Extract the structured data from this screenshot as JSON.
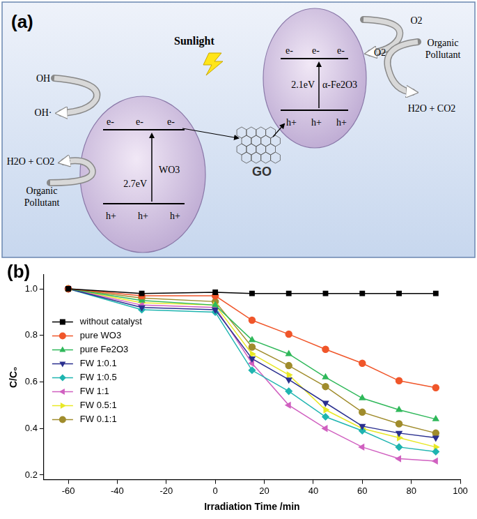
{
  "panel_labels": {
    "a": "(a)",
    "b": "(b)"
  },
  "diagram": {
    "light": "Sunlight",
    "wo3": {
      "name": "WO3",
      "band_gap": "2.7eV",
      "electrons": [
        "e-",
        "e-",
        "e-"
      ],
      "holes": [
        "h+",
        "h+",
        "h+"
      ]
    },
    "fe2o3": {
      "name": "α-Fe2O3",
      "band_gap": "2.1eV",
      "electrons": [
        "e-",
        "e-",
        "e-"
      ],
      "holes": [
        "h+",
        "h+",
        "h+"
      ]
    },
    "bridge": "GO",
    "left_reactions": [
      {
        "from": "OH",
        "to": "OH·"
      },
      {
        "from": "Organic Pollutant",
        "to": "H2O + CO2"
      }
    ],
    "right_reactions": [
      {
        "from": "O2",
        "to": "O2·"
      },
      {
        "from": "Organic Pollutant",
        "to": "H2O + CO2"
      }
    ]
  },
  "chart_data": {
    "type": "line",
    "x_label": "Irradiation Time /min",
    "y_label": "C/C₀",
    "x": [
      -60,
      -30,
      0,
      15,
      30,
      45,
      60,
      75,
      90
    ],
    "series": [
      {
        "name": "without catalyst",
        "color": "#000000",
        "marker": "square",
        "values": [
          1.0,
          0.98,
          0.985,
          0.98,
          0.98,
          0.98,
          0.98,
          0.98,
          0.98
        ]
      },
      {
        "name": "pure WO3",
        "color": "#f0562a",
        "marker": "circle",
        "values": [
          1.0,
          0.97,
          0.97,
          0.865,
          0.805,
          0.74,
          0.68,
          0.605,
          0.575
        ]
      },
      {
        "name": "pure Fe2O3",
        "color": "#2fb85a",
        "marker": "triangle-up",
        "values": [
          1.0,
          0.95,
          0.93,
          0.78,
          0.72,
          0.62,
          0.53,
          0.48,
          0.44
        ]
      },
      {
        "name": "FW 1:0.1",
        "color": "#2a2f8f",
        "marker": "triangle-down",
        "values": [
          1.0,
          0.92,
          0.91,
          0.7,
          0.61,
          0.51,
          0.41,
          0.38,
          0.36
        ]
      },
      {
        "name": "FW 1:0.5",
        "color": "#1fb5b0",
        "marker": "diamond",
        "values": [
          1.0,
          0.91,
          0.9,
          0.65,
          0.56,
          0.45,
          0.39,
          0.32,
          0.3
        ]
      },
      {
        "name": "FW 1:1",
        "color": "#d060c0",
        "marker": "triangle-left",
        "values": [
          1.0,
          0.93,
          0.92,
          0.68,
          0.5,
          0.4,
          0.32,
          0.27,
          0.26
        ]
      },
      {
        "name": "FW 0.5:1",
        "color": "#e8e825",
        "marker": "triangle-right",
        "values": [
          1.0,
          0.94,
          0.93,
          0.72,
          0.63,
          0.48,
          0.4,
          0.36,
          0.32
        ]
      },
      {
        "name": "FW 0.1:1",
        "color": "#a08c2c",
        "marker": "circle",
        "values": [
          1.0,
          0.96,
          0.945,
          0.75,
          0.67,
          0.58,
          0.47,
          0.42,
          0.38
        ]
      }
    ],
    "xlim": [
      -70,
      100
    ],
    "xticks": [
      -60,
      -40,
      -20,
      0,
      20,
      40,
      60,
      80,
      100
    ],
    "ylim": [
      0.18,
      1.06
    ],
    "yticks": [
      0.2,
      0.4,
      0.6,
      0.8,
      {
        "value": 1,
        "label": "1.0"
      }
    ],
    "grid": false,
    "legend": "left"
  }
}
